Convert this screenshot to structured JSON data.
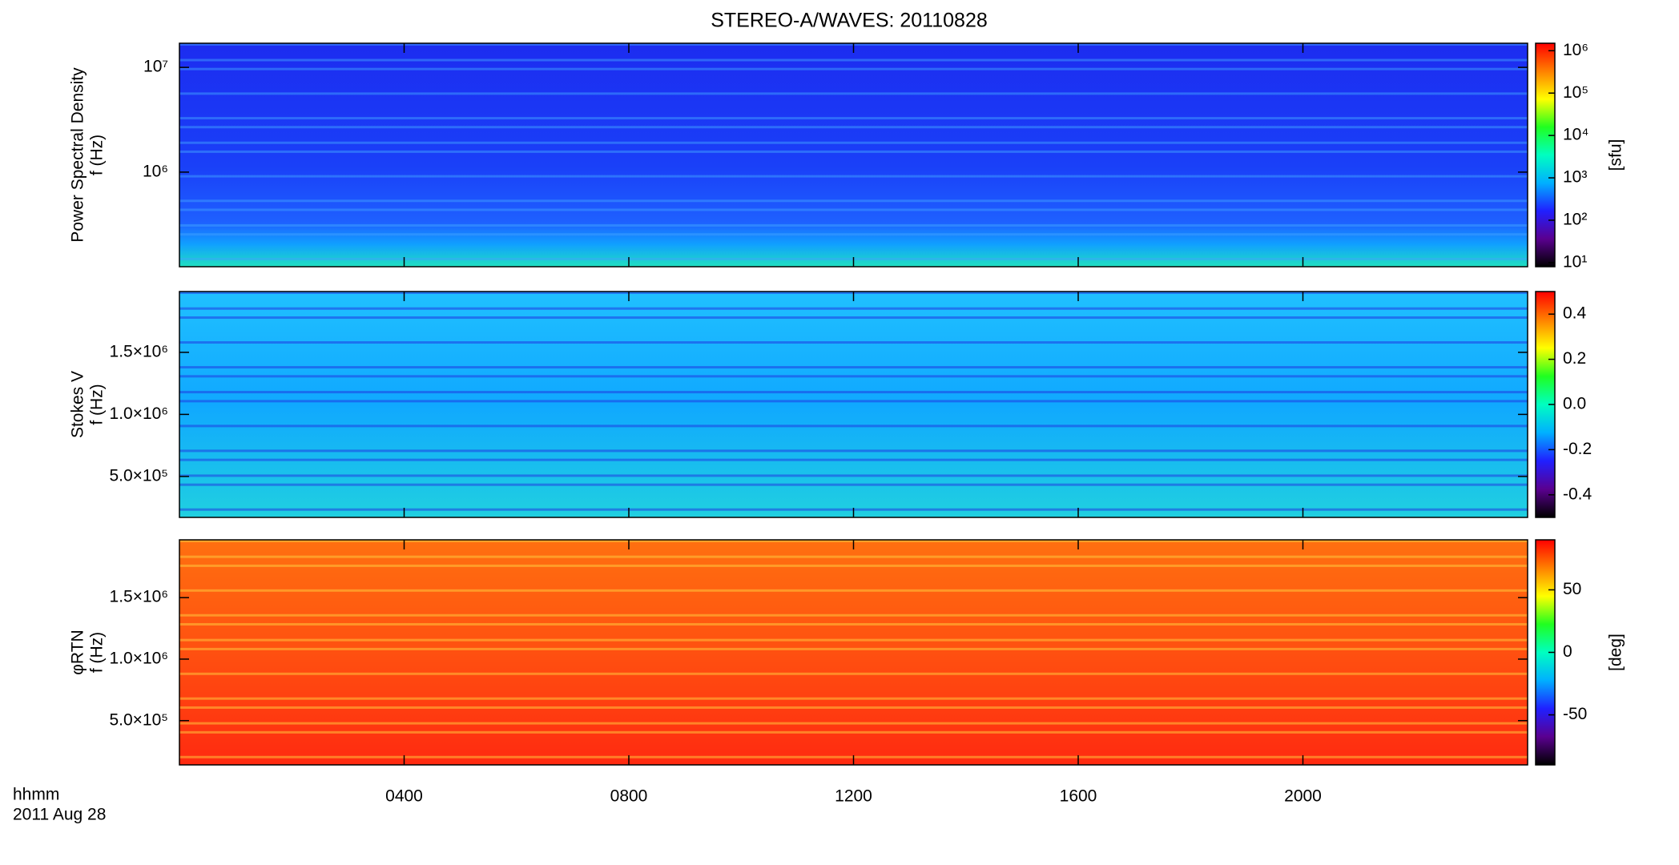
{
  "chart_data": [
    {
      "type": "spectrogram",
      "title": "STEREO-A/WAVES: 20110828",
      "ylabel": [
        "Power Spectral Density",
        "f (Hz)"
      ],
      "xlim": [
        0,
        24
      ],
      "ylog": true,
      "ylim": [
        125000,
        17000000
      ],
      "yticks": [
        {
          "value": 1000000,
          "label": "10⁶"
        },
        {
          "value": 10000000,
          "label": "10⁷"
        }
      ],
      "clog": true,
      "clim": [
        8,
        1500000
      ],
      "cticks": [
        {
          "value": 10,
          "label": "10¹"
        },
        {
          "value": 100,
          "label": "10²"
        },
        {
          "value": 1000,
          "label": "10³"
        },
        {
          "value": 10000,
          "label": "10⁴"
        },
        {
          "value": 100000,
          "label": "10⁵"
        },
        {
          "value": 1000000,
          "label": "10⁶"
        }
      ],
      "clabel": "[sfu]",
      "colormap": [
        "#000000",
        "#5a0090",
        "#2020ff",
        "#00b0ff",
        "#00ffc0",
        "#20ff20",
        "#ffff00",
        "#ff8000",
        "#ff0000"
      ]
    },
    {
      "type": "spectrogram",
      "ylabel": [
        "Stokes V",
        "f (Hz)"
      ],
      "xlim": [
        0,
        24
      ],
      "ylim": [
        170000,
        1990000
      ],
      "yticks": [
        {
          "value": 500000,
          "label": "5.0×10⁵"
        },
        {
          "value": 1000000,
          "label": "1.0×10⁶"
        },
        {
          "value": 1500000,
          "label": "1.5×10⁶"
        }
      ],
      "clim": [
        -0.5,
        0.5
      ],
      "cticks": [
        -0.4,
        -0.2,
        {
          "value": 0,
          "label": "0.0"
        },
        0.2,
        0.4
      ],
      "colormap": [
        "#000000",
        "#5a0090",
        "#2020ff",
        "#00b0ff",
        "#00ffc0",
        "#20ff20",
        "#ffff00",
        "#ff8000",
        "#ff0000"
      ]
    },
    {
      "type": "spectrogram",
      "ylabel": [
        "φRTN",
        "f (Hz)"
      ],
      "xlim": [
        0,
        24
      ],
      "ylim": [
        140000,
        1970000
      ],
      "yticks": [
        {
          "value": 500000,
          "label": "5.0×10⁵"
        },
        {
          "value": 1000000,
          "label": "1.0×10⁶"
        },
        {
          "value": 1500000,
          "label": "1.5×10⁶"
        }
      ],
      "clim": [
        -90,
        90
      ],
      "cticks": [
        -50,
        0,
        50
      ],
      "clabel": "[deg]",
      "xticks": [
        {
          "value": 4,
          "label": "0400"
        },
        {
          "value": 8,
          "label": "0800"
        },
        {
          "value": 12,
          "label": "1200"
        },
        {
          "value": 16,
          "label": "1600"
        },
        {
          "value": 20,
          "label": "2000"
        }
      ],
      "xlabel": "hhmm",
      "date_label": "2011 Aug 28",
      "colormap": [
        "#000000",
        "#5a0090",
        "#2020ff",
        "#00b0ff",
        "#00ffc0",
        "#20ff20",
        "#ffff00",
        "#ff8000",
        "#ff0000"
      ]
    }
  ]
}
